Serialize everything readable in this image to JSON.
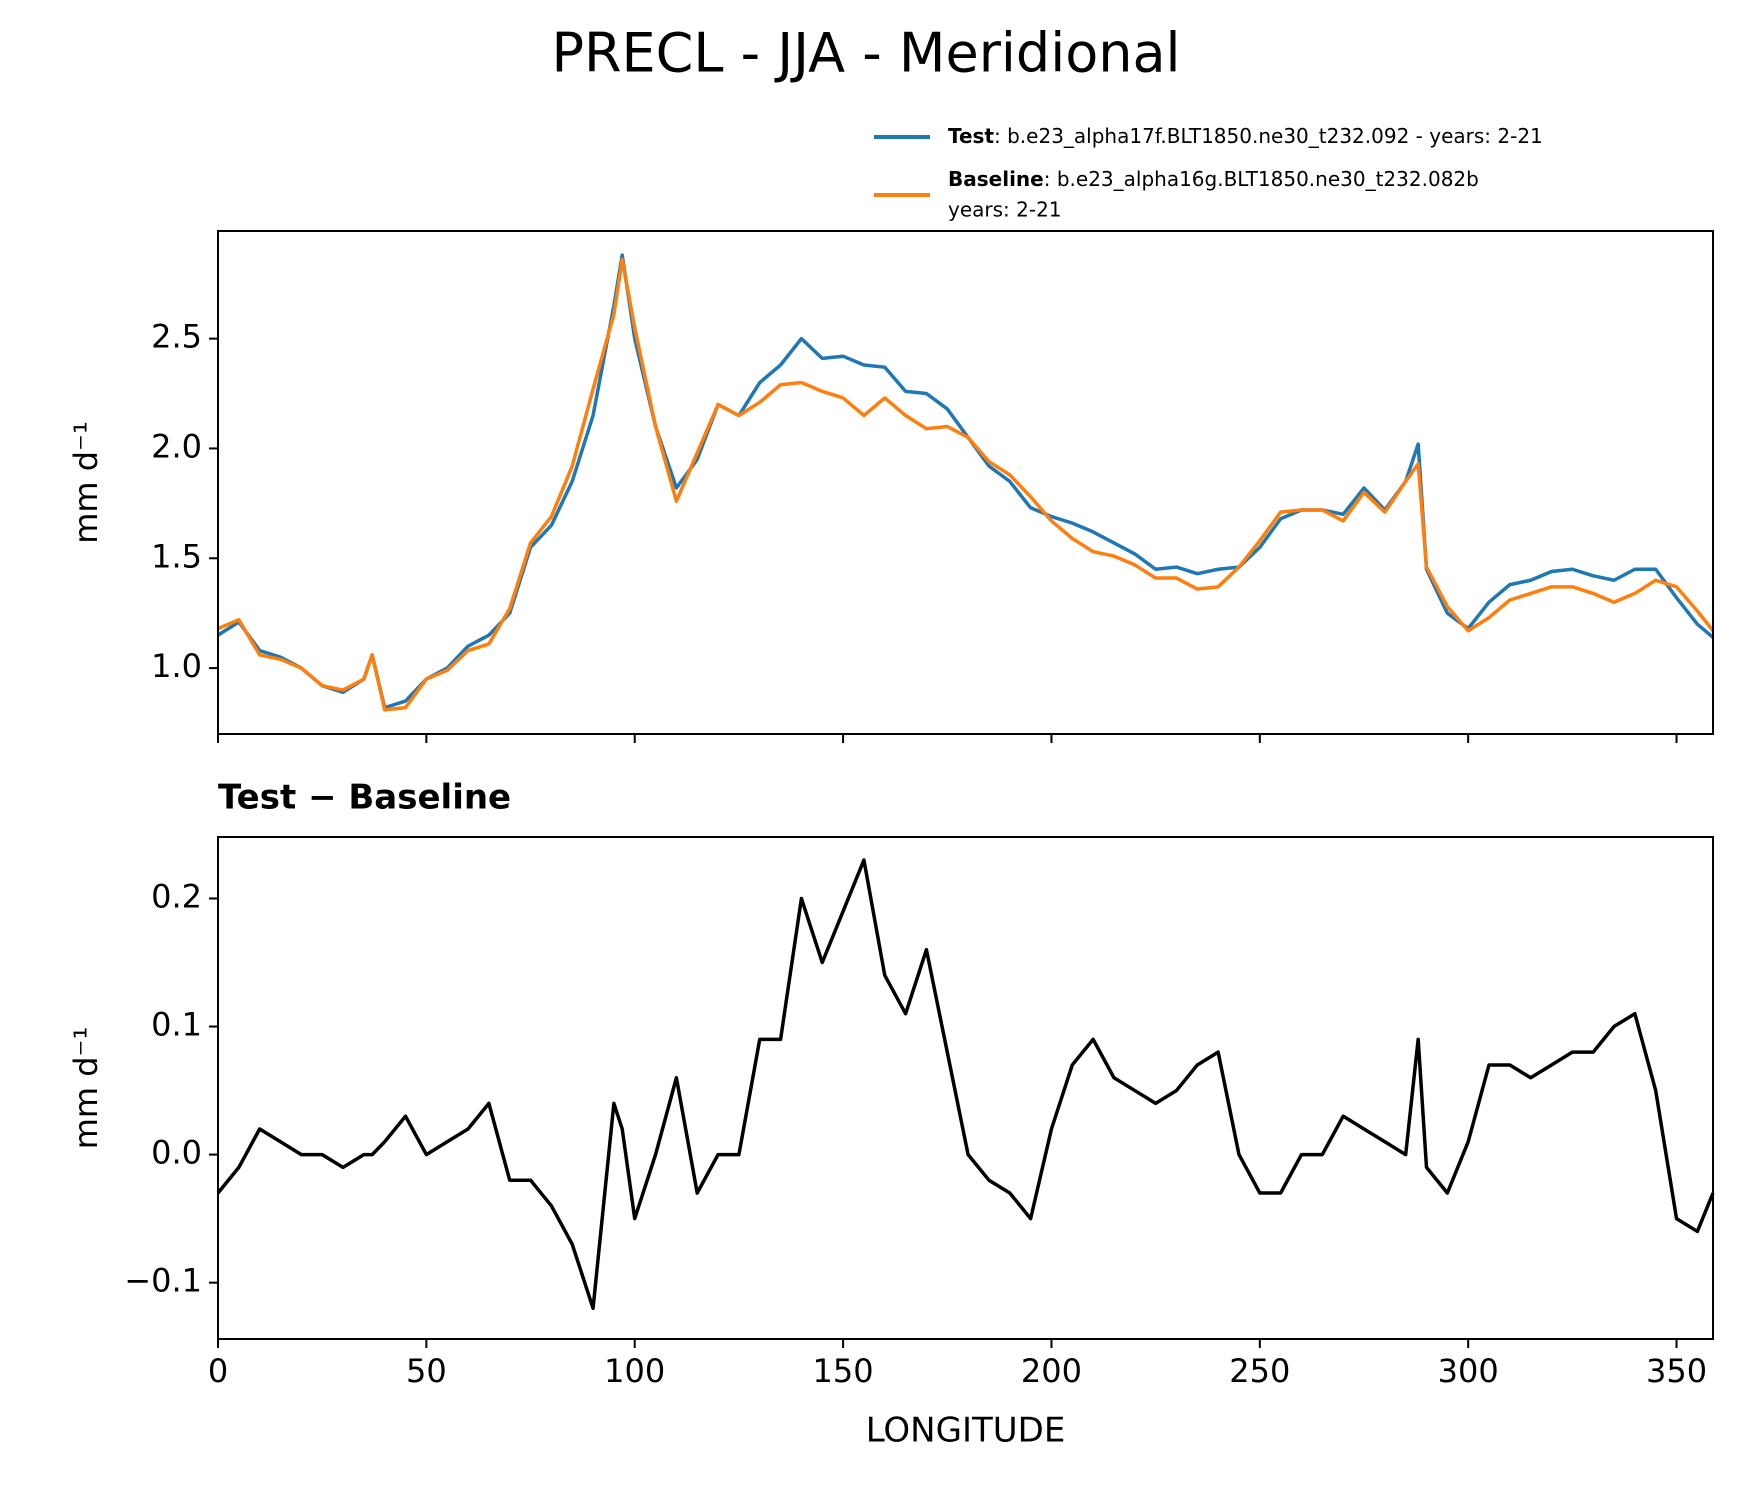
{
  "title": "PRECL - JJA - Meridional",
  "chart_data": [
    {
      "type": "line",
      "ylabel": "mm d⁻¹",
      "x": [
        0,
        5,
        10,
        15,
        20,
        25,
        30,
        35,
        37,
        40,
        45,
        50,
        55,
        60,
        65,
        70,
        75,
        80,
        85,
        90,
        95,
        97,
        100,
        105,
        110,
        115,
        120,
        125,
        130,
        135,
        140,
        145,
        150,
        155,
        160,
        165,
        170,
        175,
        180,
        185,
        190,
        195,
        200,
        205,
        210,
        215,
        220,
        225,
        230,
        235,
        240,
        245,
        250,
        255,
        260,
        265,
        270,
        275,
        280,
        285,
        288,
        290,
        295,
        300,
        305,
        310,
        315,
        320,
        325,
        330,
        335,
        340,
        345,
        350,
        355,
        358.75
      ],
      "series": [
        {
          "name": "Test",
          "description": ": b.e23_alpha17f.BLT1850.ne30_t232.092 - years: 2-21",
          "color": "#1f77b4",
          "values": [
            1.15,
            1.21,
            1.08,
            1.05,
            1.0,
            0.92,
            0.89,
            0.95,
            1.06,
            0.82,
            0.85,
            0.95,
            1.0,
            1.1,
            1.15,
            1.25,
            1.55,
            1.65,
            1.85,
            2.15,
            2.65,
            2.88,
            2.5,
            2.1,
            1.82,
            1.95,
            2.2,
            2.15,
            2.3,
            2.38,
            2.5,
            2.41,
            2.42,
            2.38,
            2.37,
            2.26,
            2.25,
            2.18,
            2.05,
            1.92,
            1.85,
            1.73,
            1.69,
            1.66,
            1.62,
            1.57,
            1.52,
            1.45,
            1.46,
            1.43,
            1.45,
            1.46,
            1.55,
            1.68,
            1.72,
            1.72,
            1.7,
            1.82,
            1.72,
            1.85,
            2.02,
            1.45,
            1.25,
            1.18,
            1.3,
            1.38,
            1.4,
            1.44,
            1.45,
            1.42,
            1.4,
            1.45,
            1.45,
            1.32,
            1.2,
            1.14
          ]
        },
        {
          "name": "Baseline",
          "description": ": b.e23_alpha16g.BLT1850.ne30_t232.082b",
          "description2": "years: 2-21",
          "color": "#ff7f0e",
          "values": [
            1.18,
            1.22,
            1.06,
            1.04,
            1.0,
            0.92,
            0.9,
            0.95,
            1.06,
            0.81,
            0.82,
            0.95,
            0.99,
            1.08,
            1.11,
            1.27,
            1.57,
            1.69,
            1.92,
            2.27,
            2.61,
            2.86,
            2.55,
            2.1,
            1.76,
            1.98,
            2.2,
            2.15,
            2.21,
            2.29,
            2.3,
            2.26,
            2.23,
            2.15,
            2.23,
            2.15,
            2.09,
            2.1,
            2.05,
            1.94,
            1.88,
            1.78,
            1.67,
            1.59,
            1.53,
            1.51,
            1.47,
            1.41,
            1.41,
            1.36,
            1.37,
            1.46,
            1.58,
            1.71,
            1.72,
            1.72,
            1.67,
            1.8,
            1.71,
            1.85,
            1.93,
            1.46,
            1.28,
            1.17,
            1.23,
            1.31,
            1.34,
            1.37,
            1.37,
            1.34,
            1.3,
            1.34,
            1.4,
            1.37,
            1.26,
            1.17
          ]
        }
      ],
      "xlim": [
        0,
        358.75
      ],
      "xticks": [
        0,
        50,
        100,
        150,
        200,
        250,
        300,
        350
      ],
      "ylim": [
        0.7,
        2.99
      ],
      "yticks": [
        {
          "value": 1.0,
          "label": "1.0"
        },
        1.5,
        {
          "value": 2.0,
          "label": "2.0"
        },
        2.5
      ]
    },
    {
      "type": "line",
      "title": "Test − Baseline",
      "xlabel": "LONGITUDE",
      "ylabel": "mm d⁻¹",
      "x": [
        0,
        5,
        10,
        15,
        20,
        25,
        30,
        35,
        37,
        40,
        45,
        50,
        55,
        60,
        65,
        70,
        75,
        80,
        85,
        90,
        95,
        97,
        100,
        105,
        110,
        115,
        120,
        125,
        130,
        135,
        140,
        145,
        150,
        155,
        160,
        165,
        170,
        175,
        180,
        185,
        190,
        195,
        200,
        205,
        210,
        215,
        220,
        225,
        230,
        235,
        240,
        245,
        250,
        255,
        260,
        265,
        270,
        275,
        280,
        285,
        288,
        290,
        295,
        300,
        305,
        310,
        315,
        320,
        325,
        330,
        335,
        340,
        345,
        350,
        355,
        358.75
      ],
      "color": "#000000",
      "values": [
        -0.03,
        -0.01,
        0.02,
        0.01,
        0.0,
        0.0,
        -0.01,
        0.0,
        0.0,
        0.01,
        0.03,
        0.0,
        0.01,
        0.02,
        0.04,
        -0.02,
        -0.02,
        -0.04,
        -0.07,
        -0.12,
        0.04,
        0.02,
        -0.05,
        0.0,
        0.06,
        -0.03,
        0.0,
        0.0,
        0.09,
        0.09,
        0.2,
        0.15,
        0.19,
        0.23,
        0.14,
        0.11,
        0.16,
        0.08,
        0.0,
        -0.02,
        -0.03,
        -0.05,
        0.02,
        0.07,
        0.09,
        0.06,
        0.05,
        0.04,
        0.05,
        0.07,
        0.08,
        0.0,
        -0.03,
        -0.03,
        0.0,
        0.0,
        0.03,
        0.02,
        0.01,
        0.0,
        0.09,
        -0.01,
        -0.03,
        0.01,
        0.07,
        0.07,
        0.06,
        0.07,
        0.08,
        0.08,
        0.1,
        0.11,
        0.05,
        -0.05,
        -0.06,
        -0.03
      ],
      "xlim": [
        0,
        358.75
      ],
      "xticks": [
        0,
        50,
        100,
        150,
        200,
        250,
        300,
        350
      ],
      "ylim": [
        -0.144,
        0.248
      ],
      "yticks": [
        {
          "value": -0.1,
          "label": "−0.1"
        },
        {
          "value": 0,
          "label": "0.0"
        },
        0.1,
        0.2
      ]
    }
  ]
}
